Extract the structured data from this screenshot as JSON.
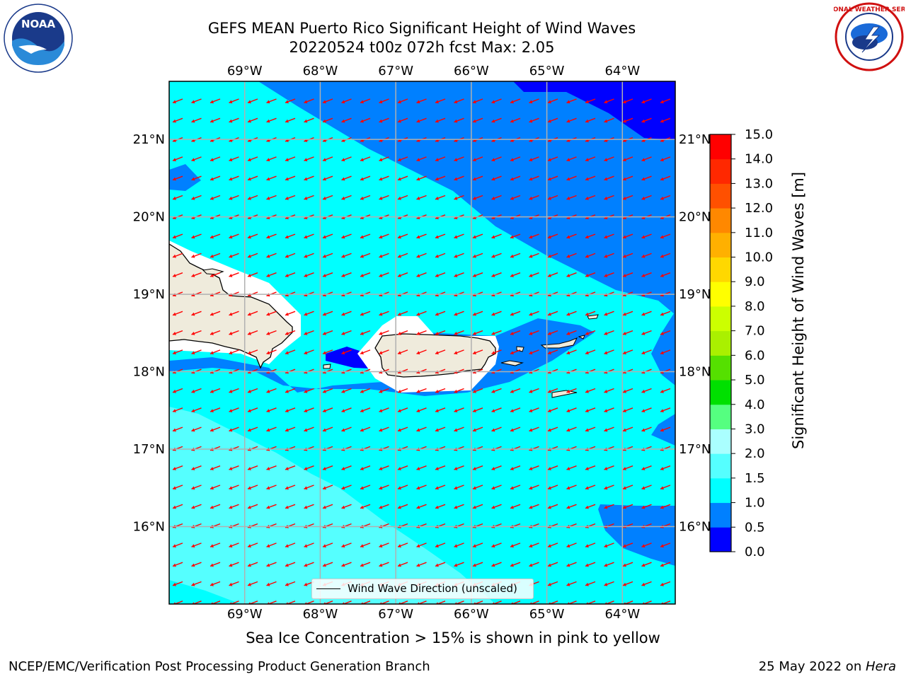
{
  "title": {
    "line1": "GEFS MEAN Puerto Rico Significant Height of Wind Waves",
    "line2": "20220524 t00z 072h fcst   Max: 2.05"
  },
  "logos": {
    "noaa_text": "NOAA",
    "nws_text": "NATIONAL WEATHER SERVICE"
  },
  "map": {
    "lon_labels": [
      "69°W",
      "68°W",
      "67°W",
      "66°W",
      "65°W",
      "64°W"
    ],
    "lat_labels": [
      "21°N",
      "20°N",
      "19°N",
      "18°N",
      "17°N",
      "16°N"
    ],
    "lon_values": [
      -69,
      -68,
      -67,
      -66,
      -65,
      -64
    ],
    "lat_values": [
      21,
      20,
      19,
      18,
      17,
      16
    ],
    "extent": {
      "lon_min": -70.0,
      "lon_max": -63.3,
      "lat_min": 15.0,
      "lat_max": 21.75
    },
    "grid": true,
    "arrow_color": "#ff0000",
    "land_color": "#efebdc",
    "wave_direction": "from east-southeast toward west-northwest"
  },
  "legend": {
    "label": "Wind Wave Direction (unscaled)"
  },
  "colorbar": {
    "title": "Significant Height of Wind Waves [m]",
    "ticks": [
      "0.0",
      "0.5",
      "1.0",
      "1.5",
      "2.0",
      "3.0",
      "4.0",
      "5.0",
      "6.0",
      "7.0",
      "8.0",
      "9.0",
      "10.0",
      "11.0",
      "12.0",
      "13.0",
      "14.0",
      "15.0"
    ],
    "colors": [
      "#0000ff",
      "#0080ff",
      "#00ffff",
      "#55ffff",
      "#aaffff",
      "#55ff80",
      "#00e000",
      "#55e000",
      "#aaf000",
      "#ccff00",
      "#ffff00",
      "#ffd800",
      "#ffb000",
      "#ff8800",
      "#ff5000",
      "#ff2800",
      "#ff0000"
    ]
  },
  "note": "Sea Ice Concentration > 15% is shown in pink to yellow",
  "footer": {
    "left": "NCEP/EMC/Verification Post Processing Product Generation Branch",
    "right_prefix": "25 May 2022 on ",
    "right_host": "Hera"
  }
}
